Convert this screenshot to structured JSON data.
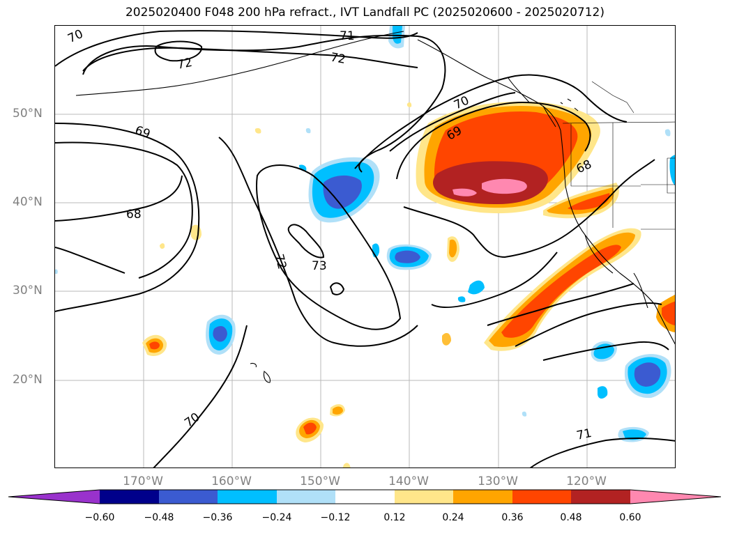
{
  "title": "2025020400 F048 200 hPa refract., IVT Landfall PC (2025020600 - 2025020712)",
  "lat_labels": [
    "50°N",
    "40°N",
    "30°N",
    "20°N"
  ],
  "lon_labels": [
    "170°W",
    "160°W",
    "150°W",
    "140°W",
    "130°W",
    "120°W"
  ],
  "contour_labels": [
    "70",
    "71",
    "72",
    "72",
    "70",
    "69",
    "69",
    "68",
    "68",
    "72",
    "73",
    "70",
    "71"
  ],
  "colorbar": {
    "ticks": [
      "−0.60",
      "−0.48",
      "−0.36",
      "−0.24",
      "−0.12",
      "0.12",
      "0.24",
      "0.36",
      "0.48",
      "0.60"
    ],
    "colors": [
      "#9932cc",
      "#00008b",
      "#3b5bd1",
      "#00bfff",
      "#b0e0f8",
      "#ffffff",
      "#ffe68a",
      "#ffa500",
      "#ff4500",
      "#b22222",
      "#ff88b0"
    ]
  }
}
